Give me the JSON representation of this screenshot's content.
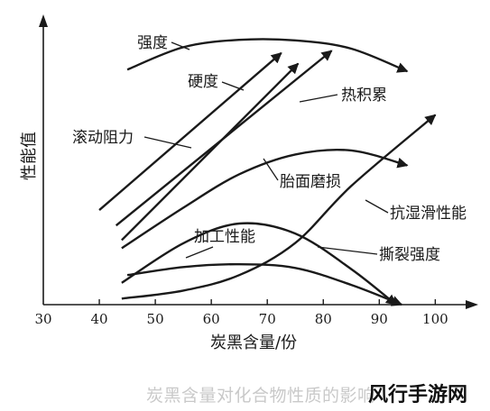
{
  "chart_data": {
    "type": "line",
    "xlabel": "炭黑含量/份",
    "ylabel": "性能值",
    "xlim": [
      30,
      108
    ],
    "xticks": [
      30,
      40,
      50,
      60,
      70,
      80,
      90,
      100
    ],
    "ylim": [
      0,
      100
    ],
    "grid": false,
    "series": [
      {
        "name": "强度",
        "x": [
          45,
          55,
          65,
          75,
          85,
          95
        ],
        "y": [
          82,
          89.8,
          92.4,
          92.2,
          89.3,
          81.4
        ]
      },
      {
        "name": "硬度",
        "x": [
          40,
          72.5
        ],
        "y": [
          33,
          87.8
        ],
        "arrow": true
      },
      {
        "name": "热积累",
        "x": [
          43,
          81.5
        ],
        "y": [
          27.6,
          88.6
        ],
        "arrow": true
      },
      {
        "name": "滚动阻力",
        "x": [
          44,
          75.5
        ],
        "y": [
          22.5,
          84.1
        ],
        "arrow": true
      },
      {
        "name": "抗湿滑性能",
        "x": [
          44,
          55,
          65,
          75,
          85,
          100
        ],
        "y": [
          2.1,
          4.9,
          10.3,
          21.5,
          41.4,
          66.2
        ],
        "arrow": true
      },
      {
        "name": "胎面磨损",
        "x": [
          44,
          55,
          65,
          75,
          85,
          95
        ],
        "y": [
          19.7,
          33.8,
          45.5,
          52.4,
          53.8,
          48.6
        ]
      },
      {
        "name": "加工性能",
        "x": [
          45,
          55,
          65,
          75,
          85,
          94
        ],
        "y": [
          10.3,
          13.1,
          14.1,
          12.8,
          6.9,
          0
        ],
        "arrow": true
      },
      {
        "name": "撕裂强度",
        "x": [
          44,
          55,
          65,
          75,
          85,
          93
        ],
        "y": [
          7.6,
          21.4,
          28.3,
          24.8,
          12.4,
          0
        ],
        "arrow": true
      }
    ]
  },
  "caption": "炭黑含量对化合物性质的影响",
  "watermark": "风行手游网"
}
